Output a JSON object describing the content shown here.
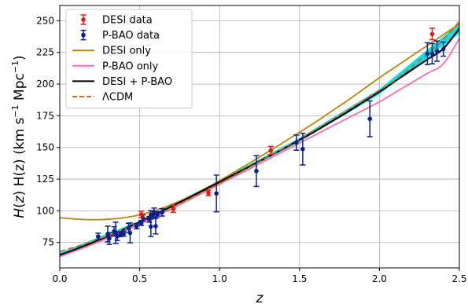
{
  "chart_data": {
    "type": "line",
    "xlabel": "z",
    "ylabel_main": "H(z) (km s",
    "ylabel_sup1": "−1",
    "ylabel_mid": " Mpc",
    "ylabel_sup2": "−1",
    "ylabel_end": ")",
    "xlim": [
      0.0,
      2.5
    ],
    "ylim": [
      55,
      262
    ],
    "xticks": [
      0.0,
      0.5,
      1.0,
      1.5,
      2.0,
      2.5
    ],
    "xtick_labels": [
      "0.0",
      "0.5",
      "1.0",
      "1.5",
      "2.0",
      "2.5"
    ],
    "yticks": [
      75,
      100,
      125,
      150,
      175,
      200,
      225,
      250
    ],
    "ytick_labels": [
      "75",
      "100",
      "125",
      "150",
      "175",
      "200",
      "225",
      "250"
    ],
    "grid": true,
    "legend_position": "top-left",
    "legend": [
      {
        "label": "DESI data",
        "kind": "errorbar",
        "color": "#e31a1c"
      },
      {
        "label": "P-BAO data",
        "kind": "errorbar",
        "color": "#0a1f8f"
      },
      {
        "label": "DESI only",
        "kind": "line",
        "color": "#b8860b"
      },
      {
        "label": "P-BAO only",
        "kind": "line",
        "color": "#ff69b4"
      },
      {
        "label": "DESI + P-BAO",
        "kind": "line",
        "color": "#000000"
      },
      {
        "label": "ΛCDM",
        "kind": "dashed",
        "color": "#d2691e"
      }
    ],
    "desi_points": [
      {
        "x": 0.51,
        "y": 97.2,
        "err": 2.5
      },
      {
        "x": 0.71,
        "y": 101.6,
        "err": 2.8
      },
      {
        "x": 0.93,
        "y": 114.0,
        "err": 2.0
      },
      {
        "x": 1.32,
        "y": 147.6,
        "err": 3.2
      },
      {
        "x": 2.33,
        "y": 239.5,
        "err": 4.5
      }
    ],
    "pbao_points": [
      {
        "x": 0.24,
        "y": 79.7,
        "err": 2.7
      },
      {
        "x": 0.3,
        "y": 81.7,
        "err": 6.2
      },
      {
        "x": 0.31,
        "y": 78.2,
        "err": 4.7
      },
      {
        "x": 0.34,
        "y": 83.8,
        "err": 3.7
      },
      {
        "x": 0.35,
        "y": 82.7,
        "err": 8.4
      },
      {
        "x": 0.36,
        "y": 79.9,
        "err": 3.3
      },
      {
        "x": 0.38,
        "y": 81.5,
        "err": 1.9
      },
      {
        "x": 0.4,
        "y": 82.0,
        "err": 2.0
      },
      {
        "x": 0.43,
        "y": 86.5,
        "err": 3.7
      },
      {
        "x": 0.44,
        "y": 82.6,
        "err": 7.8
      },
      {
        "x": 0.48,
        "y": 87.8,
        "err": 2.0
      },
      {
        "x": 0.51,
        "y": 90.4,
        "err": 1.9
      },
      {
        "x": 0.52,
        "y": 94.4,
        "err": 2.3
      },
      {
        "x": 0.56,
        "y": 93.3,
        "err": 2.3
      },
      {
        "x": 0.57,
        "y": 96.8,
        "err": 3.4
      },
      {
        "x": 0.57,
        "y": 87.6,
        "err": 7.8
      },
      {
        "x": 0.59,
        "y": 98.5,
        "err": 3.7
      },
      {
        "x": 0.6,
        "y": 87.9,
        "err": 6.1
      },
      {
        "x": 0.61,
        "y": 97.3,
        "err": 2.1
      },
      {
        "x": 0.64,
        "y": 98.8,
        "err": 2.9
      },
      {
        "x": 0.98,
        "y": 113.7,
        "err": 14.5
      },
      {
        "x": 1.23,
        "y": 131.4,
        "err": 12.2
      },
      {
        "x": 1.48,
        "y": 153.8,
        "err": 6.0
      },
      {
        "x": 1.52,
        "y": 148.7,
        "err": 12.5
      },
      {
        "x": 1.94,
        "y": 172.6,
        "err": 14.1
      },
      {
        "x": 2.3,
        "y": 224.0,
        "err": 8.6
      },
      {
        "x": 2.33,
        "y": 224.0,
        "err": 8.0
      },
      {
        "x": 2.36,
        "y": 226.0,
        "err": 8.0
      },
      {
        "x": 2.4,
        "y": 227.6,
        "err": 5.6
      }
    ],
    "series": [
      {
        "key": "desi_only",
        "style": "solid",
        "color": "#b8860b",
        "x": [
          0.0,
          0.1,
          0.2,
          0.3,
          0.4,
          0.5,
          0.6,
          0.7,
          0.8,
          0.9,
          1.0,
          1.1,
          1.2,
          1.3,
          1.4,
          1.5,
          1.6,
          1.7,
          1.8,
          1.9,
          2.0,
          2.1,
          2.2,
          2.3,
          2.4,
          2.5
        ],
        "y": [
          94.6,
          93.5,
          93.0,
          93.3,
          94.5,
          96.8,
          100.4,
          105.0,
          110.5,
          116.8,
          123.8,
          131.1,
          138.6,
          146.3,
          154.0,
          162.0,
          170.0,
          178.5,
          187.0,
          196.0,
          205.0,
          213.5,
          222.0,
          230.5,
          239.0,
          247.5
        ]
      },
      {
        "key": "pbao_only",
        "style": "solid",
        "color": "#ff69b4",
        "x": [
          0.0,
          0.1,
          0.2,
          0.3,
          0.4,
          0.5,
          0.6,
          0.7,
          0.8,
          0.9,
          1.0,
          1.1,
          1.2,
          1.3,
          1.4,
          1.5,
          1.6,
          1.7,
          1.8,
          1.9,
          2.0,
          2.1,
          2.2,
          2.3,
          2.4,
          2.5
        ],
        "y": [
          64.0,
          68.5,
          73.3,
          78.4,
          83.8,
          89.5,
          95.5,
          101.7,
          108.0,
          114.5,
          121.0,
          127.5,
          134.0,
          140.5,
          147.0,
          153.5,
          160.0,
          166.5,
          173.0,
          179.5,
          186.0,
          193.5,
          201.0,
          208.5,
          216.0,
          236.0
        ]
      },
      {
        "key": "desi_pbao",
        "style": "solid",
        "color": "#000000",
        "x": [
          0.0,
          0.1,
          0.2,
          0.3,
          0.4,
          0.5,
          0.6,
          0.7,
          0.8,
          0.9,
          1.0,
          1.1,
          1.2,
          1.3,
          1.4,
          1.5,
          1.6,
          1.7,
          1.8,
          1.9,
          2.0,
          2.1,
          2.2,
          2.3,
          2.4,
          2.5
        ],
        "y": [
          65.2,
          69.8,
          74.7,
          79.9,
          85.4,
          91.2,
          97.3,
          103.5,
          109.8,
          116.3,
          122.8,
          129.3,
          135.9,
          142.4,
          149.0,
          156.0,
          163.0,
          170.5,
          178.0,
          186.0,
          194.0,
          202.5,
          211.0,
          219.5,
          228.0,
          244.0
        ]
      },
      {
        "key": "lcdm",
        "style": "dashed",
        "color": "#d2691e",
        "x": [
          0.0,
          0.1,
          0.2,
          0.3,
          0.4,
          0.5,
          0.6,
          0.7,
          0.8,
          0.9,
          1.0,
          1.1,
          1.2,
          1.3,
          1.4,
          1.5,
          1.6,
          1.7,
          1.8,
          1.9,
          2.0,
          2.1,
          2.2,
          2.3,
          2.4,
          2.5
        ],
        "y": [
          68.0,
          71.6,
          75.8,
          80.4,
          85.4,
          90.8,
          96.5,
          102.4,
          108.6,
          115.0,
          121.6,
          128.3,
          135.2,
          142.2,
          149.4,
          156.7,
          164.1,
          171.7,
          179.4,
          187.2,
          195.1,
          203.2,
          213.5,
          224.0,
          235.0,
          249.5
        ]
      }
    ],
    "band": {
      "color": "#00e5ee",
      "x": [
        0.0,
        0.5,
        1.0,
        1.5,
        2.0,
        2.5
      ],
      "lower": [
        63.5,
        90.2,
        121.6,
        154.5,
        192.0,
        240.0
      ],
      "upper": [
        66.9,
        92.2,
        124.0,
        157.5,
        196.0,
        248.0
      ]
    }
  }
}
